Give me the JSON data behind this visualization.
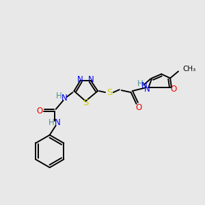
{
  "background_color": "#e8e8e8",
  "colors": {
    "C": "#000000",
    "N": "#0000ee",
    "O": "#ee0000",
    "S": "#cccc00",
    "H": "#4a9090"
  },
  "lw": 1.4,
  "fs": 8.5
}
